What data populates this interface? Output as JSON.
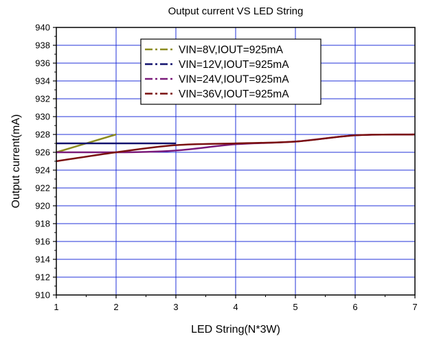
{
  "chart_data": {
    "type": "line",
    "title": "Output current VS LED String",
    "xlabel": "LED String(N*3W)",
    "ylabel": "Output current(mA)",
    "xlim": [
      1,
      7
    ],
    "ylim": [
      910,
      940
    ],
    "x_ticks": [
      "1",
      "2",
      "3",
      "4",
      "5",
      "6",
      "7"
    ],
    "y_ticks": [
      "910",
      "912",
      "914",
      "916",
      "918",
      "920",
      "922",
      "924",
      "926",
      "928",
      "930",
      "932",
      "934",
      "936",
      "938",
      "940"
    ],
    "grid": true,
    "legend_position": "top-center",
    "series": [
      {
        "name": "VIN=8V,IOUT=925mA",
        "color": "#8b8b1e",
        "x": [
          1,
          2
        ],
        "values": [
          926,
          928
        ]
      },
      {
        "name": "VIN=12V,IOUT=925mA",
        "color": "#12126e",
        "x": [
          1,
          2,
          3
        ],
        "values": [
          927,
          927,
          927
        ]
      },
      {
        "name": "VIN=24V,IOUT=925mA",
        "color": "#7a1a7a",
        "x": [
          1,
          2,
          3,
          4,
          5,
          6,
          7
        ],
        "values": [
          926,
          926,
          926.2,
          926.9,
          927.2,
          927.9,
          928
        ]
      },
      {
        "name": "VIN=36V,IOUT=925mA",
        "color": "#7a1010",
        "x": [
          1,
          2,
          3,
          4,
          5,
          6,
          7
        ],
        "values": [
          925,
          926,
          926.8,
          927,
          927.2,
          927.9,
          928
        ]
      }
    ]
  }
}
